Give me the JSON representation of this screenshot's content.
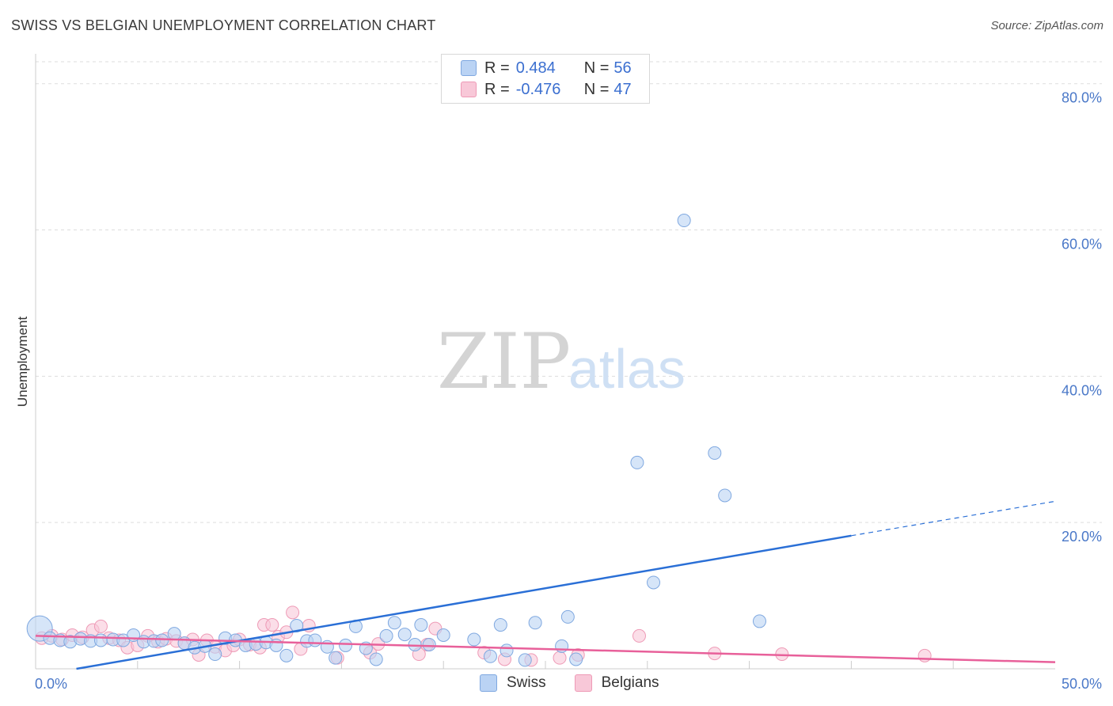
{
  "title": "SWISS VS BELGIAN UNEMPLOYMENT CORRELATION CHART",
  "source": "Source: ZipAtlas.com",
  "watermark": {
    "zip": "ZIP",
    "atlas": "atlas"
  },
  "legend": {
    "r_label": "R =",
    "n_label": "N =",
    "swiss": {
      "r": "0.484",
      "n": "56"
    },
    "belgians": {
      "r": "-0.476",
      "n": "47"
    }
  },
  "colors": {
    "swiss_fill": "#bad3f4",
    "swiss_stroke": "#7fa8e0",
    "swiss_line": "#2a6fd6",
    "belgians_fill": "#f8c8d8",
    "belgians_stroke": "#ee9ab6",
    "belgians_line": "#e8609a",
    "grid": "#dddddd",
    "tick": "#4a78c8"
  },
  "chart_data": {
    "type": "scatter",
    "title": "SWISS VS BELGIAN UNEMPLOYMENT CORRELATION CHART",
    "xlabel": "",
    "ylabel": "Unemployment",
    "xlim": [
      0,
      50
    ],
    "ylim": [
      0,
      83
    ],
    "x_tick_labels": [
      "0.0%",
      "50.0%"
    ],
    "y_ticks": [
      20,
      40,
      60,
      80
    ],
    "y_tick_labels": [
      "20.0%",
      "40.0%",
      "60.0%",
      "80.0%"
    ],
    "grid": true,
    "legend_position": "top-center",
    "series": [
      {
        "name": "Swiss",
        "r": 0.484,
        "n": 56,
        "points": [
          [
            0.2,
            5.5
          ],
          [
            0.7,
            4.2
          ],
          [
            1.2,
            3.9
          ],
          [
            1.7,
            3.7
          ],
          [
            2.2,
            4.1
          ],
          [
            2.7,
            3.8
          ],
          [
            3.2,
            3.9
          ],
          [
            3.8,
            4.0
          ],
          [
            4.3,
            3.9
          ],
          [
            4.8,
            4.6
          ],
          [
            5.3,
            3.7
          ],
          [
            5.8,
            3.8
          ],
          [
            6.2,
            3.9
          ],
          [
            6.8,
            4.8
          ],
          [
            7.3,
            3.5
          ],
          [
            7.8,
            2.9
          ],
          [
            8.3,
            3.1
          ],
          [
            8.8,
            2.0
          ],
          [
            9.3,
            4.2
          ],
          [
            9.8,
            3.9
          ],
          [
            10.3,
            3.2
          ],
          [
            10.8,
            3.4
          ],
          [
            11.3,
            3.6
          ],
          [
            11.8,
            3.2
          ],
          [
            12.3,
            1.8
          ],
          [
            12.8,
            5.9
          ],
          [
            13.3,
            3.8
          ],
          [
            13.7,
            3.9
          ],
          [
            14.3,
            3.0
          ],
          [
            14.7,
            1.5
          ],
          [
            15.2,
            3.2
          ],
          [
            15.7,
            5.8
          ],
          [
            16.2,
            2.8
          ],
          [
            16.7,
            1.3
          ],
          [
            17.2,
            4.5
          ],
          [
            17.6,
            6.3
          ],
          [
            18.1,
            4.7
          ],
          [
            18.6,
            3.3
          ],
          [
            18.9,
            6.0
          ],
          [
            19.3,
            3.3
          ],
          [
            20.0,
            4.6
          ],
          [
            21.5,
            4.0
          ],
          [
            22.3,
            1.7
          ],
          [
            22.8,
            6.0
          ],
          [
            23.1,
            2.5
          ],
          [
            24.0,
            1.2
          ],
          [
            24.5,
            6.3
          ],
          [
            25.8,
            3.1
          ],
          [
            26.1,
            7.1
          ],
          [
            26.5,
            1.3
          ],
          [
            29.5,
            28.2
          ],
          [
            30.3,
            11.8
          ],
          [
            31.8,
            61.3
          ],
          [
            33.3,
            29.5
          ],
          [
            33.8,
            23.7
          ],
          [
            35.5,
            6.5
          ]
        ]
      },
      {
        "name": "Belgians",
        "r": -0.476,
        "n": 47,
        "points": [
          [
            0.3,
            4.2
          ],
          [
            0.8,
            4.5
          ],
          [
            1.3,
            4.0
          ],
          [
            1.8,
            4.6
          ],
          [
            2.3,
            4.3
          ],
          [
            2.8,
            5.3
          ],
          [
            3.2,
            5.8
          ],
          [
            3.6,
            4.2
          ],
          [
            4.1,
            3.9
          ],
          [
            4.5,
            2.9
          ],
          [
            5.0,
            3.2
          ],
          [
            5.5,
            4.5
          ],
          [
            6.0,
            3.7
          ],
          [
            6.4,
            4.1
          ],
          [
            6.9,
            3.8
          ],
          [
            7.3,
            3.5
          ],
          [
            7.7,
            4.0
          ],
          [
            8.0,
            1.9
          ],
          [
            8.4,
            3.9
          ],
          [
            8.8,
            3.0
          ],
          [
            9.3,
            2.5
          ],
          [
            9.7,
            3.2
          ],
          [
            10.0,
            4.0
          ],
          [
            10.5,
            3.3
          ],
          [
            11.0,
            2.9
          ],
          [
            11.2,
            6.0
          ],
          [
            11.6,
            6.0
          ],
          [
            11.9,
            4.4
          ],
          [
            12.3,
            5.0
          ],
          [
            12.6,
            7.7
          ],
          [
            13.0,
            2.7
          ],
          [
            13.4,
            5.9
          ],
          [
            14.8,
            1.5
          ],
          [
            16.4,
            2.2
          ],
          [
            16.8,
            3.4
          ],
          [
            18.8,
            2.0
          ],
          [
            19.2,
            3.3
          ],
          [
            19.6,
            5.5
          ],
          [
            22.0,
            2.2
          ],
          [
            23.0,
            1.3
          ],
          [
            24.3,
            1.2
          ],
          [
            25.7,
            1.5
          ],
          [
            26.6,
            1.9
          ],
          [
            29.6,
            4.5
          ],
          [
            33.3,
            2.1
          ],
          [
            36.6,
            2.0
          ],
          [
            43.6,
            1.8
          ]
        ]
      }
    ],
    "trend_lines": [
      {
        "name": "Swiss",
        "x0": 2.0,
        "y0": 0.0,
        "x1": 40.0,
        "y1": 18.2,
        "dashed_to_x": 50.0,
        "dashed_to_y": 22.9
      },
      {
        "name": "Belgians",
        "x0": 0.0,
        "y0": 4.5,
        "x1": 50.0,
        "y1": 0.9
      }
    ]
  },
  "bottom_legend": [
    {
      "label": "Swiss"
    },
    {
      "label": "Belgians"
    }
  ]
}
